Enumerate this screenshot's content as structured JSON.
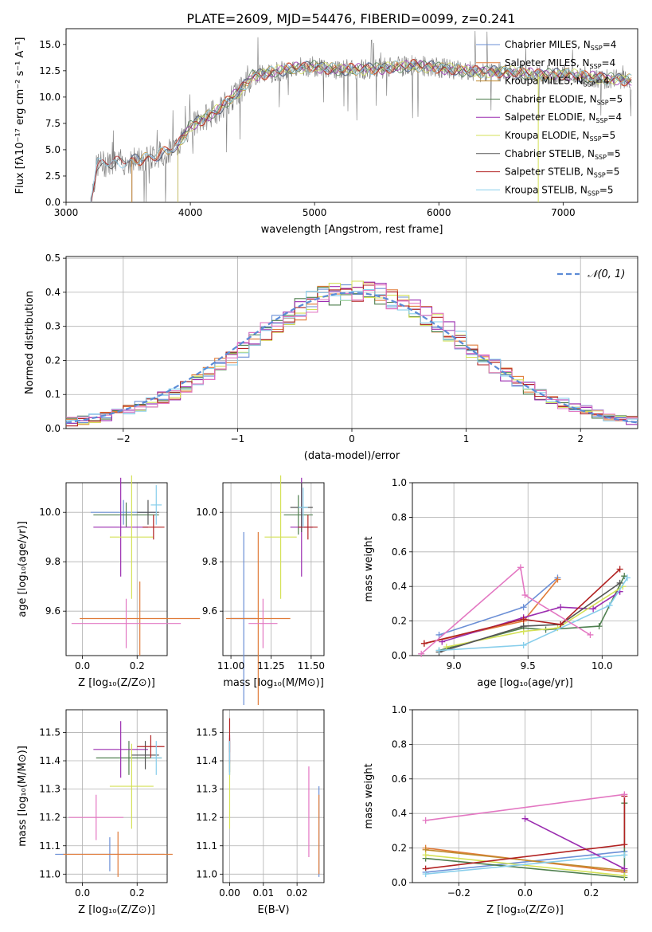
{
  "figure": {
    "title": "PLATE=2609, MJD=54476, FIBERID=0099, z=0.241"
  },
  "colors": [
    "#6b8fd6",
    "#e07b39",
    "#c08a2e",
    "#4f7f4f",
    "#9b2db0",
    "#d4e157",
    "#555555",
    "#b22222",
    "#87ceeb",
    "#e377c2"
  ],
  "chart_data": [
    {
      "id": "spectrum",
      "type": "line",
      "xlabel": "wavelength [Angstrom, rest frame]",
      "ylabel": "Flux [fλ10⁻¹⁷ erg cm⁻² s⁻¹ A⁻¹]",
      "xlim": [
        3000,
        7600
      ],
      "ylim": [
        0,
        16.5
      ],
      "xticks": [
        3000,
        4000,
        5000,
        6000,
        7000
      ],
      "yticks": [
        0.0,
        2.5,
        5.0,
        7.5,
        10.0,
        12.5,
        15.0
      ],
      "legend_position": "upper right",
      "continuum": {
        "x": [
          3200,
          3250,
          3500,
          3700,
          3900,
          4000,
          4200,
          4400,
          4500,
          4800,
          5000,
          5200,
          5500,
          5800,
          6000,
          6300,
          6600,
          6800,
          7000,
          7300,
          7550
        ],
        "y": [
          0.3,
          3.6,
          3.9,
          4.3,
          5.4,
          7.2,
          8.6,
          10.6,
          12.0,
          12.7,
          12.9,
          12.6,
          12.7,
          13.0,
          12.8,
          12.4,
          12.4,
          12.1,
          12.2,
          11.8,
          11.6
        ]
      },
      "series": [
        {
          "name": "Chabrier MILES, N_SSP=4",
          "color_index": 0,
          "start": 3530
        },
        {
          "name": "Salpeter MILES, N_SSP=4",
          "color_index": 1,
          "start": 3530
        },
        {
          "name": "Kroupa MILES, N_SSP=4",
          "color_index": 2,
          "start": 3530
        },
        {
          "name": "Chabrier ELODIE, N_SSP=5",
          "color_index": 3,
          "start": 3900
        },
        {
          "name": "Salpeter ELODIE, N_SSP=4",
          "color_index": 4,
          "start": 3900
        },
        {
          "name": "Kroupa ELODIE, N_SSP=5",
          "color_index": 5,
          "start": 3900
        },
        {
          "name": "Chabrier STELIB, N_SSP=5",
          "color_index": 6,
          "start": 3200
        },
        {
          "name": "Salpeter STELIB, N_SSP=5",
          "color_index": 7,
          "start": 3200
        },
        {
          "name": "Kroupa STELIB, N_SSP=5",
          "color_index": 8,
          "start": 3200
        }
      ]
    },
    {
      "id": "residuals",
      "type": "line",
      "xlabel": "(data-model)/error",
      "ylabel": "Normed distribution",
      "xlim": [
        -2.5,
        2.5
      ],
      "ylim": [
        0,
        0.505
      ],
      "xticks": [
        -2,
        -1,
        0,
        1,
        2
      ],
      "yticks": [
        0.0,
        0.1,
        0.2,
        0.3,
        0.4,
        0.5
      ],
      "legend": "𝒩(0, 1)",
      "grid": true,
      "bin_width": 0.1,
      "base_histogram": [
        0.02,
        0.025,
        0.03,
        0.035,
        0.045,
        0.055,
        0.065,
        0.075,
        0.09,
        0.1,
        0.12,
        0.14,
        0.16,
        0.185,
        0.21,
        0.235,
        0.26,
        0.285,
        0.31,
        0.33,
        0.35,
        0.37,
        0.385,
        0.395,
        0.4,
        0.405,
        0.4,
        0.395,
        0.385,
        0.37,
        0.35,
        0.33,
        0.31,
        0.285,
        0.26,
        0.235,
        0.21,
        0.185,
        0.16,
        0.14,
        0.12,
        0.1,
        0.09,
        0.075,
        0.065,
        0.055,
        0.045,
        0.035,
        0.03,
        0.025
      ]
    },
    {
      "id": "z-vs-age",
      "type": "scatter",
      "xlabel": "Z [log₁₀(Z/Z⊙)]",
      "ylabel": "age  [log₁₀(age/yr)]",
      "xlim": [
        -0.06,
        0.31
      ],
      "ylim": [
        9.42,
        10.12
      ],
      "xticks": [
        0.0,
        0.2
      ],
      "yticks": [
        9.6,
        9.8,
        10.0
      ],
      "points": [
        {
          "x": 0.15,
          "y": 10.0,
          "xerr": 0.12,
          "yerr": 0.05,
          "c": 0
        },
        {
          "x": 0.21,
          "y": 9.57,
          "xerr": 0.22,
          "yerr": 0.15,
          "c": 1
        },
        {
          "x": 0.16,
          "y": 9.99,
          "xerr": 0.12,
          "yerr": 0.05,
          "c": 3
        },
        {
          "x": 0.14,
          "y": 9.94,
          "xerr": 0.1,
          "yerr": 0.2,
          "c": 4
        },
        {
          "x": 0.18,
          "y": 9.9,
          "xerr": 0.08,
          "yerr": 0.25,
          "c": 5
        },
        {
          "x": 0.24,
          "y": 10.0,
          "xerr": 0.04,
          "yerr": 0.05,
          "c": 6
        },
        {
          "x": 0.26,
          "y": 9.94,
          "xerr": 0.04,
          "yerr": 0.05,
          "c": 7
        },
        {
          "x": 0.27,
          "y": 10.03,
          "xerr": 0.02,
          "yerr": 0.08,
          "c": 8
        },
        {
          "x": 0.16,
          "y": 9.55,
          "xerr": 0.2,
          "yerr": 0.1,
          "c": 9
        }
      ]
    },
    {
      "id": "mass-vs-age",
      "type": "scatter",
      "xlabel": "mass [log₁₀(M/M⊙)]",
      "ylabel": "",
      "xlim": [
        10.95,
        11.58
      ],
      "ylim": [
        9.42,
        10.12
      ],
      "xticks": [
        11.0,
        11.25,
        11.5
      ],
      "yticks": [
        9.6,
        9.8,
        10.0
      ],
      "points": [
        {
          "x": 11.08,
          "y": 9.57,
          "xerr": 0.08,
          "yerr": 0.35,
          "c": 0
        },
        {
          "x": 11.17,
          "y": 9.57,
          "xerr": 0.2,
          "yerr": 0.35,
          "c": 1
        },
        {
          "x": 11.42,
          "y": 9.99,
          "xerr": 0.09,
          "yerr": 0.08,
          "c": 3
        },
        {
          "x": 11.44,
          "y": 9.94,
          "xerr": 0.07,
          "yerr": 0.2,
          "c": 4
        },
        {
          "x": 11.31,
          "y": 9.9,
          "xerr": 0.1,
          "yerr": 0.25,
          "c": 5
        },
        {
          "x": 11.44,
          "y": 10.02,
          "xerr": 0.07,
          "yerr": 0.1,
          "c": 6
        },
        {
          "x": 11.48,
          "y": 9.94,
          "xerr": 0.06,
          "yerr": 0.05,
          "c": 7
        },
        {
          "x": 11.45,
          "y": 10.02,
          "xerr": 0.03,
          "yerr": 0.08,
          "c": 8
        },
        {
          "x": 11.2,
          "y": 9.55,
          "xerr": 0.09,
          "yerr": 0.1,
          "c": 9
        }
      ]
    },
    {
      "id": "age-vs-weight",
      "type": "line",
      "xlabel": "age  [log₁₀(age/yr)]",
      "ylabel": "mass weight",
      "xlim": [
        8.72,
        10.24
      ],
      "ylim": [
        0,
        1.0
      ],
      "xticks": [
        9.0,
        9.5,
        10.0
      ],
      "yticks": [
        0.0,
        0.2,
        0.4,
        0.6,
        0.8,
        1.0
      ],
      "grid": true,
      "series": [
        {
          "c": 0,
          "x": [
            8.9,
            9.47,
            9.7
          ],
          "y": [
            0.12,
            0.28,
            0.45
          ]
        },
        {
          "c": 1,
          "x": [
            8.8,
            9.47,
            9.7
          ],
          "y": [
            0.07,
            0.2,
            0.44
          ]
        },
        {
          "c": 3,
          "x": [
            8.9,
            9.47,
            9.62,
            9.98,
            10.15
          ],
          "y": [
            0.03,
            0.16,
            0.15,
            0.17,
            0.46
          ]
        },
        {
          "c": 4,
          "x": [
            8.92,
            9.47,
            9.72,
            9.94,
            10.12
          ],
          "y": [
            0.08,
            0.22,
            0.28,
            0.27,
            0.37
          ]
        },
        {
          "c": 5,
          "x": [
            8.95,
            9.47,
            9.7,
            10.14
          ],
          "y": [
            0.05,
            0.14,
            0.16,
            0.4
          ]
        },
        {
          "c": 6,
          "x": [
            8.9,
            9.47,
            9.72,
            10.12
          ],
          "y": [
            0.02,
            0.17,
            0.18,
            0.42
          ]
        },
        {
          "c": 7,
          "x": [
            8.8,
            9.47,
            9.72,
            10.12
          ],
          "y": [
            0.07,
            0.21,
            0.18,
            0.5
          ]
        },
        {
          "c": 8,
          "x": [
            8.9,
            9.47,
            10.05,
            10.17
          ],
          "y": [
            0.03,
            0.06,
            0.29,
            0.45
          ]
        },
        {
          "c": 9,
          "x": [
            8.78,
            9.45,
            9.48,
            9.92
          ],
          "y": [
            0.01,
            0.51,
            0.35,
            0.12
          ]
        }
      ]
    },
    {
      "id": "z-vs-mass",
      "type": "scatter",
      "xlabel": "Z [log₁₀(Z/Z⊙)]",
      "ylabel": "mass [log₁₀(M/M⊙)]",
      "xlim": [
        -0.06,
        0.31
      ],
      "ylim": [
        10.97,
        11.58
      ],
      "xticks": [
        0.0,
        0.2
      ],
      "yticks": [
        11.0,
        11.1,
        11.2,
        11.3,
        11.4,
        11.5
      ],
      "points": [
        {
          "x": 0.1,
          "y": 11.07,
          "xerr": 0.2,
          "yerr": 0.06,
          "c": 0
        },
        {
          "x": 0.13,
          "y": 11.07,
          "xerr": 0.2,
          "yerr": 0.08,
          "c": 1
        },
        {
          "x": 0.17,
          "y": 11.41,
          "xerr": 0.12,
          "yerr": 0.06,
          "c": 3
        },
        {
          "x": 0.14,
          "y": 11.44,
          "xerr": 0.1,
          "yerr": 0.1,
          "c": 4
        },
        {
          "x": 0.18,
          "y": 11.31,
          "xerr": 0.08,
          "yerr": 0.15,
          "c": 5
        },
        {
          "x": 0.23,
          "y": 11.42,
          "xerr": 0.05,
          "yerr": 0.05,
          "c": 6
        },
        {
          "x": 0.25,
          "y": 11.45,
          "xerr": 0.05,
          "yerr": 0.04,
          "c": 7
        },
        {
          "x": 0.27,
          "y": 11.41,
          "xerr": 0.02,
          "yerr": 0.06,
          "c": 8
        },
        {
          "x": 0.05,
          "y": 11.2,
          "xerr": 0.1,
          "yerr": 0.08,
          "c": 9
        }
      ]
    },
    {
      "id": "ebv-vs-mass",
      "type": "scatter",
      "xlabel": "E(B-V)",
      "ylabel": "",
      "xlim": [
        -0.002,
        0.028
      ],
      "ylim": [
        10.97,
        11.58
      ],
      "xticks": [
        0.0,
        0.01,
        0.02
      ],
      "yticks": [
        11.0,
        11.1,
        11.2,
        11.3,
        11.4,
        11.5
      ],
      "points": [
        {
          "x": 0.0265,
          "y": 11.15,
          "xerr": 0,
          "yerr": 0.16,
          "c": 0
        },
        {
          "x": 0.0265,
          "y": 11.14,
          "xerr": 0,
          "yerr": 0.14,
          "c": 1
        },
        {
          "x": 0.0,
          "y": 11.41,
          "xerr": 0,
          "yerr": 0.06,
          "c": 3
        },
        {
          "x": 0.0,
          "y": 11.44,
          "xerr": 0,
          "yerr": 0.05,
          "c": 4
        },
        {
          "x": 0.0,
          "y": 11.28,
          "xerr": 0,
          "yerr": 0.12,
          "c": 5
        },
        {
          "x": 0.0,
          "y": 11.42,
          "xerr": 0,
          "yerr": 0.06,
          "c": 6
        },
        {
          "x": 0.0,
          "y": 11.49,
          "xerr": 0,
          "yerr": 0.06,
          "c": 7
        },
        {
          "x": 0.0,
          "y": 11.41,
          "xerr": 0,
          "yerr": 0.06,
          "c": 8
        },
        {
          "x": 0.0235,
          "y": 11.22,
          "xerr": 0,
          "yerr": 0.16,
          "c": 9
        }
      ]
    },
    {
      "id": "z-vs-weight",
      "type": "line",
      "xlabel": "Z [log₁₀(Z/Z⊙)]",
      "ylabel": "mass weight",
      "xlim": [
        -0.34,
        0.34
      ],
      "ylim": [
        0,
        1.0
      ],
      "xticks": [
        -0.2,
        0.0,
        0.2
      ],
      "yticks": [
        0.0,
        0.2,
        0.4,
        0.6,
        0.8,
        1.0
      ],
      "grid": true,
      "series": [
        {
          "c": 0,
          "x": [
            -0.3,
            0.3
          ],
          "y": [
            0.06,
            0.18
          ]
        },
        {
          "c": 1,
          "x": [
            -0.3,
            0.3
          ],
          "y": [
            0.2,
            0.06
          ]
        },
        {
          "c": 2,
          "x": [
            -0.3,
            0.3
          ],
          "y": [
            0.19,
            0.07
          ]
        },
        {
          "c": 3,
          "x": [
            -0.3,
            0.3,
            0.3
          ],
          "y": [
            0.14,
            0.03,
            0.46
          ]
        },
        {
          "c": 4,
          "x": [
            0.0,
            0.3
          ],
          "y": [
            0.37,
            0.08
          ]
        },
        {
          "c": 5,
          "x": [
            -0.3,
            0.3
          ],
          "y": [
            0.16,
            0.04
          ]
        },
        {
          "c": 7,
          "x": [
            -0.3,
            0.3,
            0.3
          ],
          "y": [
            0.08,
            0.22,
            0.5
          ]
        },
        {
          "c": 8,
          "x": [
            -0.3,
            0.3
          ],
          "y": [
            0.05,
            0.16
          ]
        },
        {
          "c": 9,
          "x": [
            -0.3,
            0.3
          ],
          "y": [
            0.36,
            0.51
          ]
        }
      ]
    }
  ]
}
